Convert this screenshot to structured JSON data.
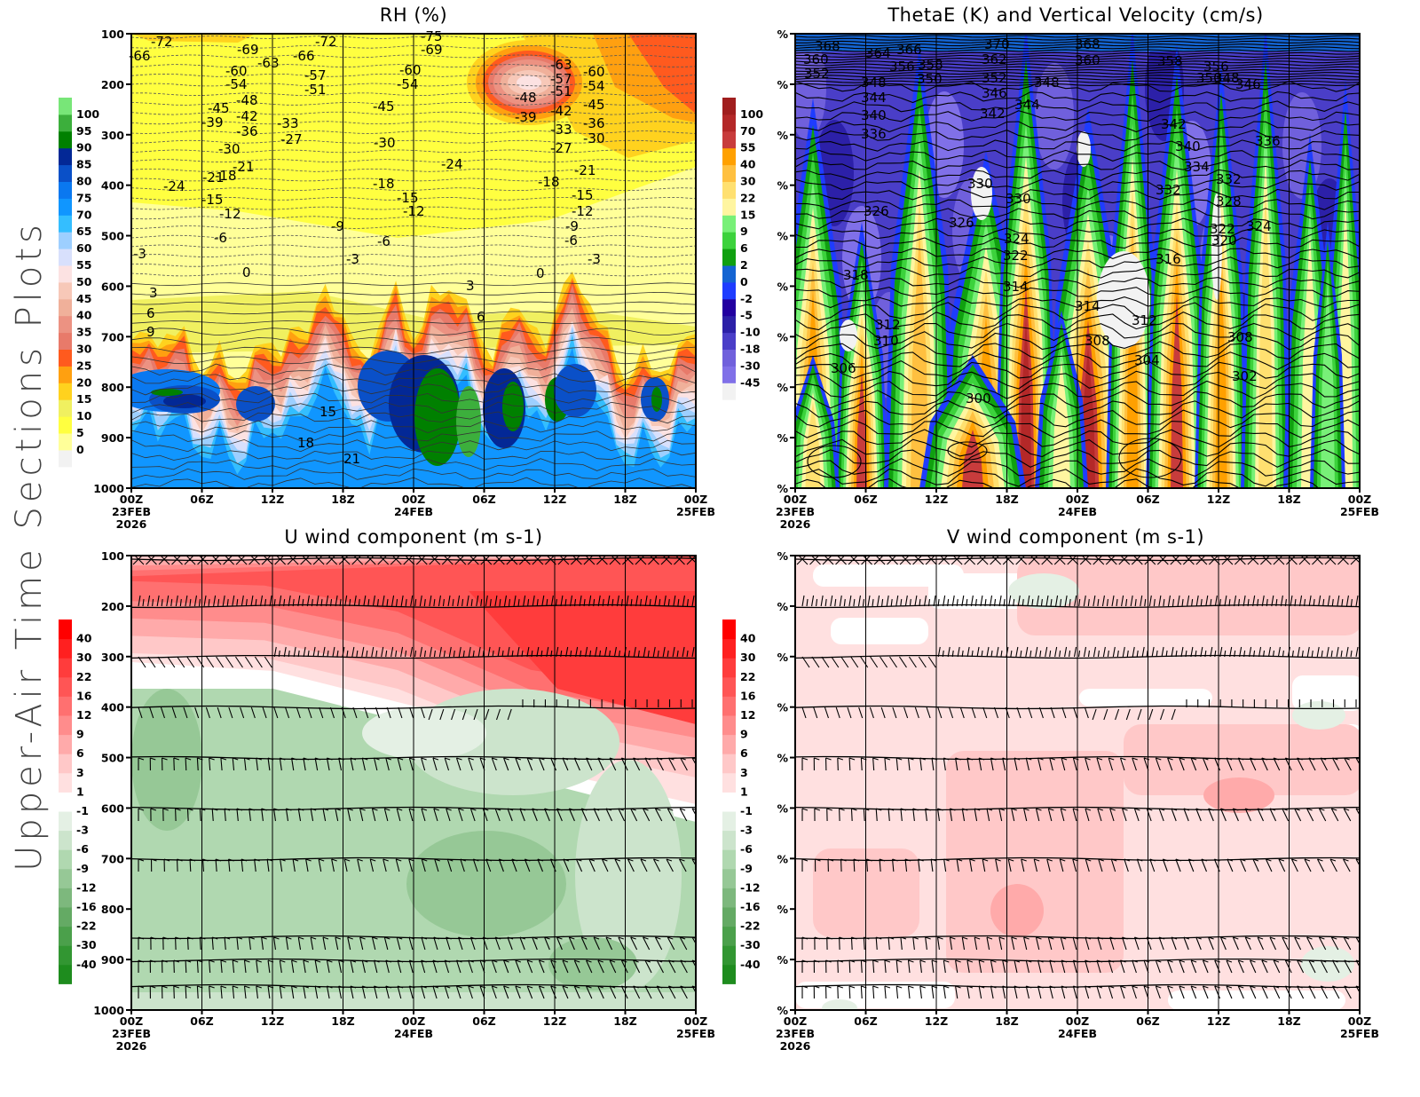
{
  "figure": {
    "side_title": "Upper-Air Time Sections Plots"
  },
  "chart_data": [
    {
      "type": "heatmap",
      "title": "RH (%)",
      "xlabel": "",
      "ylabel": "",
      "x_ticks": [
        "00Z",
        "06Z",
        "12Z",
        "18Z",
        "00Z",
        "06Z",
        "12Z",
        "18Z",
        "00Z"
      ],
      "x_date_labels": [
        {
          "tick_index": 0,
          "lines": [
            "23FEB",
            "2026"
          ]
        },
        {
          "tick_index": 4,
          "lines": [
            "24FEB"
          ]
        },
        {
          "tick_index": 8,
          "lines": [
            "25FEB"
          ]
        }
      ],
      "y_ticks": [
        "100",
        "200",
        "300",
        "400",
        "500",
        "600",
        "700",
        "800",
        "900",
        "1000"
      ],
      "ylim": [
        1000,
        100
      ],
      "colorbar": {
        "labels": [
          "0",
          "5",
          "10",
          "15",
          "20",
          "25",
          "30",
          "35",
          "40",
          "45",
          "50",
          "55",
          "60",
          "65",
          "70",
          "75",
          "80",
          "85",
          "90",
          "95",
          "100"
        ],
        "colors": [
          "#f2f2f2",
          "#ffff99",
          "#ffff40",
          "#f0f060",
          "#ffd21e",
          "#ffa010",
          "#ff5a1e",
          "#e87a6a",
          "#ec9282",
          "#f0b09a",
          "#f7c8b8",
          "#fce2e2",
          "#d8e0fc",
          "#9dcfff",
          "#34beff",
          "#1096ff",
          "#0a78f0",
          "#0a50c8",
          "#032896",
          "#008000",
          "#3caf3c",
          "#78e678"
        ]
      },
      "contour_labels_temperature_c": [
        "-72",
        "-66",
        "-69",
        "-63",
        "-60",
        "-54",
        "-72",
        "-66",
        "-57",
        "-51",
        "-75",
        "-69",
        "-60",
        "-54",
        "-45",
        "-48",
        "-42",
        "-36",
        "-45",
        "-39",
        "-33",
        "-30",
        "-27",
        "-24",
        "-30",
        "-21",
        "-18",
        "-24",
        "-21",
        "-18",
        "-15",
        "-12",
        "-15",
        "-12",
        "-9",
        "-6",
        "-6",
        "-3",
        "-3",
        "0",
        "3",
        "6",
        "9",
        "15",
        "18",
        "21",
        "-63",
        "-57",
        "-51",
        "-48",
        "-39",
        "-42",
        "-33",
        "-27",
        "-60",
        "-54",
        "-45",
        "-36",
        "-30",
        "-21",
        "-18",
        "-15",
        "-12",
        "-9",
        "-6",
        "-3",
        "0",
        "3",
        "6"
      ]
    },
    {
      "type": "heatmap",
      "title": "ThetaE (K) and Vertical Velocity (cm/s)",
      "x_ticks": [
        "00Z",
        "06Z",
        "12Z",
        "18Z",
        "00Z",
        "06Z",
        "12Z",
        "18Z",
        "00Z"
      ],
      "x_date_labels": [
        {
          "tick_index": 0,
          "lines": [
            "23FEB",
            "2026"
          ]
        },
        {
          "tick_index": 4,
          "lines": [
            "24FEB"
          ]
        },
        {
          "tick_index": 8,
          "lines": [
            "25FEB"
          ]
        }
      ],
      "y_ticks": [
        "%",
        "%",
        "%",
        "%",
        "%",
        "%",
        "%",
        "%",
        "%",
        "%"
      ],
      "colorbar": {
        "labels": [
          "-45",
          "-30",
          "-18",
          "-10",
          "-5",
          "-2",
          "0",
          "2",
          "6",
          "9",
          "15",
          "22",
          "30",
          "40",
          "55",
          "70",
          "100"
        ],
        "colors": [
          "#f2f2f2",
          "#8070e8",
          "#7060dc",
          "#4a3ec8",
          "#2c20a8",
          "#2200a0",
          "#1e3cff",
          "#1464d2",
          "#10a010",
          "#3cd23c",
          "#78f078",
          "#fff5a0",
          "#ffe070",
          "#ffc040",
          "#ffa000",
          "#c83c3c",
          "#b42828",
          "#a01e1e"
        ]
      },
      "contour_labels_thetae_k": [
        "368",
        "360",
        "352",
        "364",
        "366",
        "356",
        "358",
        "348",
        "350",
        "370",
        "362",
        "352",
        "368",
        "360",
        "358",
        "356",
        "350",
        "348",
        "346",
        "346",
        "348",
        "344",
        "344",
        "342",
        "340",
        "342",
        "340",
        "336",
        "336",
        "334",
        "332",
        "330",
        "332",
        "330",
        "328",
        "326",
        "326",
        "324",
        "324",
        "322",
        "322",
        "320",
        "318",
        "316",
        "314",
        "314",
        "312",
        "312",
        "310",
        "308",
        "308",
        "306",
        "304",
        "302",
        "300"
      ]
    },
    {
      "type": "heatmap",
      "title": "U wind component (m s-1)",
      "x_ticks": [
        "00Z",
        "06Z",
        "12Z",
        "18Z",
        "00Z",
        "06Z",
        "12Z",
        "18Z",
        "00Z"
      ],
      "x_date_labels": [
        {
          "tick_index": 0,
          "lines": [
            "23FEB",
            "2026"
          ]
        },
        {
          "tick_index": 4,
          "lines": [
            "24FEB"
          ]
        },
        {
          "tick_index": 8,
          "lines": [
            "25FEB"
          ]
        }
      ],
      "y_ticks": [
        "100",
        "200",
        "300",
        "400",
        "500",
        "600",
        "700",
        "800",
        "900",
        "1000"
      ],
      "ylim": [
        1000,
        100
      ],
      "overlay": "wind barbs",
      "colorbar": {
        "labels": [
          "-40",
          "-30",
          "-22",
          "-16",
          "-12",
          "-9",
          "-6",
          "-3",
          "-1",
          "1",
          "3",
          "6",
          "9",
          "12",
          "16",
          "22",
          "30",
          "40"
        ],
        "colors": [
          "#1e8c1e",
          "#329632",
          "#4ba04b",
          "#64aa64",
          "#7db87d",
          "#96c896",
          "#b0d8b0",
          "#cce4cc",
          "#e4f0e4",
          "#ffffff",
          "#ffe0e0",
          "#ffc8c8",
          "#ffaaaa",
          "#ff8c8c",
          "#ff7070",
          "#ff5555",
          "#ff3c3c",
          "#ff2020",
          "#ff0000"
        ]
      }
    },
    {
      "type": "heatmap",
      "title": "V wind component (m s-1)",
      "x_ticks": [
        "00Z",
        "06Z",
        "12Z",
        "18Z",
        "00Z",
        "06Z",
        "12Z",
        "18Z",
        "00Z"
      ],
      "x_date_labels": [
        {
          "tick_index": 0,
          "lines": [
            "23FEB",
            "2026"
          ]
        },
        {
          "tick_index": 4,
          "lines": [
            "24FEB"
          ]
        },
        {
          "tick_index": 8,
          "lines": [
            "25FEB"
          ]
        }
      ],
      "y_ticks": [
        "%",
        "%",
        "%",
        "%",
        "%",
        "%",
        "%",
        "%",
        "%",
        "%"
      ],
      "overlay": "wind barbs",
      "colorbar": {
        "labels": [
          "-40",
          "-30",
          "-22",
          "-16",
          "-12",
          "-9",
          "-6",
          "-3",
          "-1",
          "1",
          "3",
          "6",
          "9",
          "12",
          "16",
          "22",
          "30",
          "40"
        ],
        "colors": [
          "#1e8c1e",
          "#329632",
          "#4ba04b",
          "#64aa64",
          "#7db87d",
          "#96c896",
          "#b0d8b0",
          "#cce4cc",
          "#e4f0e4",
          "#ffffff",
          "#ffe0e0",
          "#ffc8c8",
          "#ffaaaa",
          "#ff8c8c",
          "#ff7070",
          "#ff5555",
          "#ff3c3c",
          "#ff2020",
          "#ff0000"
        ]
      }
    }
  ]
}
